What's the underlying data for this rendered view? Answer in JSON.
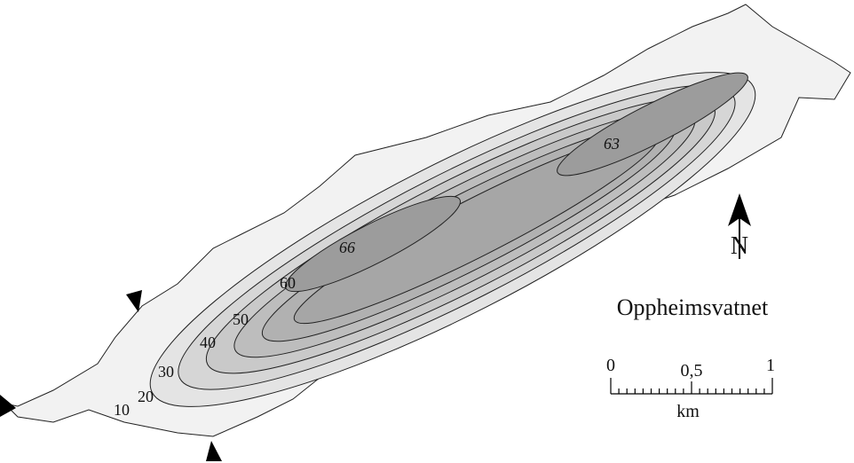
{
  "map": {
    "title": "Oppheimsvatnet",
    "north": "N",
    "depth_labels": [
      "10",
      "20",
      "30",
      "40",
      "50",
      "60",
      "66",
      "63"
    ],
    "scale_bar": {
      "ticks": [
        "0",
        "0,5",
        "1"
      ],
      "unit": "km"
    }
  }
}
